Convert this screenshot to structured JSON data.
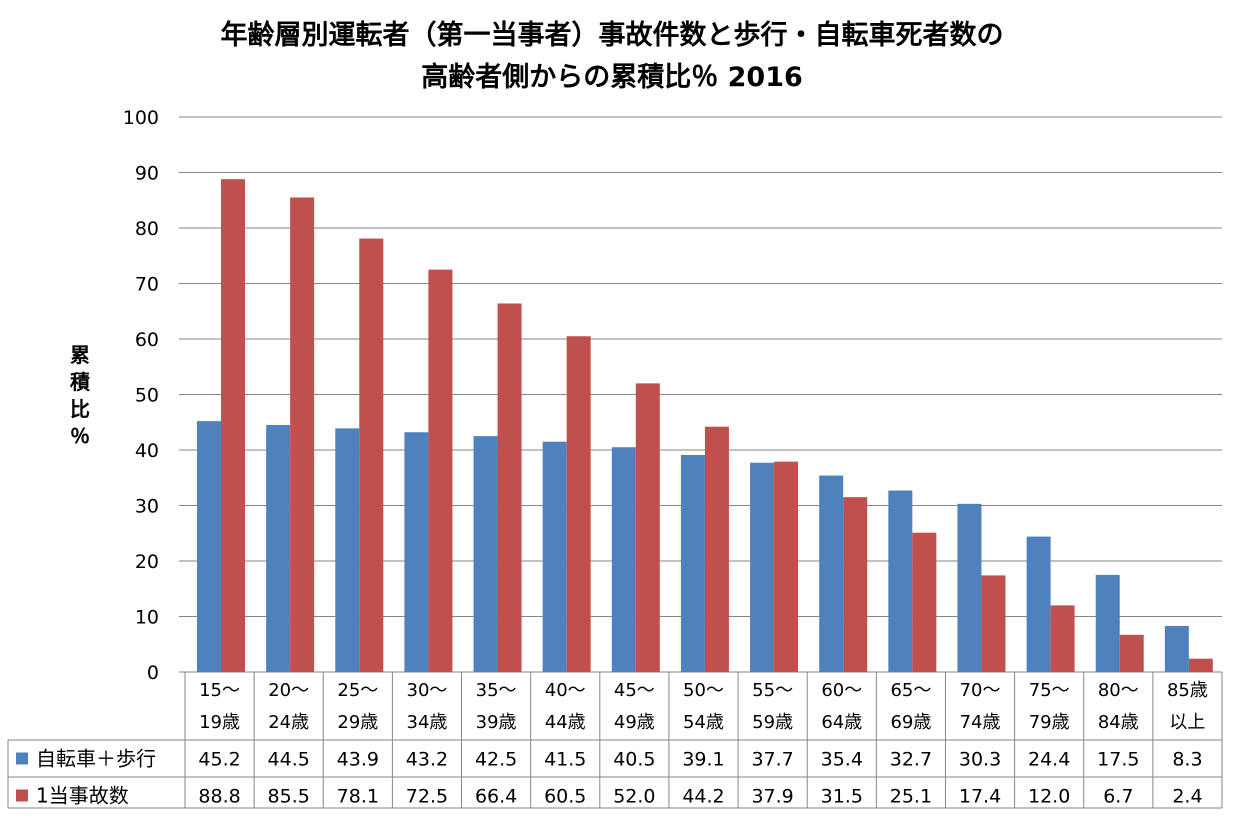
{
  "chart_data": {
    "type": "bar",
    "title_line1": "年齢層別運転者（第一当事者）事故件数と歩行・自転車死者数の",
    "title_line2": "高齢者側からの累積比％ 2016",
    "ylabel": [
      "累",
      "積",
      "比",
      "％"
    ],
    "ylim": [
      0,
      100
    ],
    "ytick_step": 10,
    "grid": true,
    "legend": "data-table",
    "categories": [
      [
        "15～",
        "19歳"
      ],
      [
        "20～",
        "24歳"
      ],
      [
        "25～",
        "29歳"
      ],
      [
        "30～",
        "34歳"
      ],
      [
        "35～",
        "39歳"
      ],
      [
        "40～",
        "44歳"
      ],
      [
        "45～",
        "49歳"
      ],
      [
        "50～",
        "54歳"
      ],
      [
        "55～",
        "59歳"
      ],
      [
        "60～",
        "64歳"
      ],
      [
        "65～",
        "69歳"
      ],
      [
        "70～",
        "74歳"
      ],
      [
        "75～",
        "79歳"
      ],
      [
        "80～",
        "84歳"
      ],
      [
        "85歳",
        "以上"
      ]
    ],
    "series": [
      {
        "name": "自転車＋歩行",
        "color": "#4F81BD",
        "values": [
          45.2,
          44.5,
          43.9,
          43.2,
          42.5,
          41.5,
          40.5,
          39.1,
          37.7,
          35.4,
          32.7,
          30.3,
          24.4,
          17.5,
          8.3
        ]
      },
      {
        "name": "1当事故数",
        "color": "#C0504D",
        "values": [
          88.8,
          85.5,
          78.1,
          72.5,
          66.4,
          60.5,
          52.0,
          44.2,
          37.9,
          31.5,
          25.1,
          17.4,
          12.0,
          6.7,
          2.4
        ]
      }
    ]
  }
}
